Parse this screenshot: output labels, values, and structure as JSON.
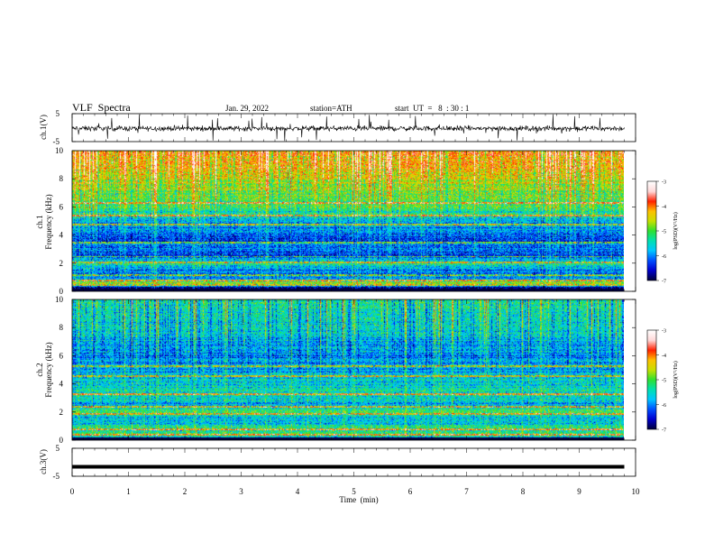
{
  "header": {
    "title": "VLF  Spectra",
    "date": "Jan. 29, 2022",
    "station": "station=ATH",
    "start_time": "start  UT  =   8  : 30 : 1"
  },
  "chart_data": [
    {
      "type": "line",
      "panel": "ch1-waveform",
      "ylabel": "ch.1(V)",
      "ylim": [
        -5,
        5
      ],
      "yticks": [
        "5",
        "-5"
      ],
      "xlim": [
        0,
        10
      ],
      "x_extent_data": [
        0,
        9.8
      ],
      "baseline": -0.3,
      "noise_amplitude": 1.0,
      "spike_range": [
        -5,
        5
      ]
    },
    {
      "type": "heatmap",
      "panel": "ch1-spectrogram",
      "ylabel": "ch.1\nFrequency (kHz)",
      "ylim": [
        0,
        10
      ],
      "yticks": [
        "0",
        "2",
        "4",
        "6",
        "8",
        "10"
      ],
      "xlim": [
        0,
        10
      ],
      "x_extent_data": [
        0,
        9.8
      ],
      "psd_profile": [
        {
          "f": 0.0,
          "v": -7.0
        },
        {
          "f": 0.3,
          "v": -6.8
        },
        {
          "f": 0.6,
          "v": -4.6
        },
        {
          "f": 1.0,
          "v": -6.0
        },
        {
          "f": 1.5,
          "v": -6.1
        },
        {
          "f": 2.0,
          "v": -5.3
        },
        {
          "f": 2.6,
          "v": -6.3
        },
        {
          "f": 3.2,
          "v": -6.0
        },
        {
          "f": 4.0,
          "v": -6.2
        },
        {
          "f": 5.0,
          "v": -5.7
        },
        {
          "f": 6.0,
          "v": -5.1
        },
        {
          "f": 7.0,
          "v": -4.8
        },
        {
          "f": 8.0,
          "v": -4.5
        },
        {
          "f": 9.0,
          "v": -4.2
        },
        {
          "f": 10.0,
          "v": -4.0
        }
      ],
      "line_frequencies_khz": [
        0.5,
        0.8,
        1.2,
        2.1,
        2.5,
        3.5,
        4.8,
        5.4,
        6.3
      ]
    },
    {
      "type": "heatmap",
      "panel": "ch2-spectrogram",
      "ylabel": "ch.2\nFrequency (kHz)",
      "ylim": [
        0,
        10
      ],
      "yticks": [
        "0",
        "2",
        "4",
        "6",
        "8",
        "10"
      ],
      "xlim": [
        0,
        10
      ],
      "x_extent_data": [
        0,
        9.8
      ],
      "psd_profile": [
        {
          "f": 0.0,
          "v": -7.0
        },
        {
          "f": 0.4,
          "v": -5.0
        },
        {
          "f": 1.0,
          "v": -5.4
        },
        {
          "f": 1.6,
          "v": -5.8
        },
        {
          "f": 2.0,
          "v": -5.0
        },
        {
          "f": 2.6,
          "v": -5.8
        },
        {
          "f": 3.2,
          "v": -5.3
        },
        {
          "f": 4.0,
          "v": -5.6
        },
        {
          "f": 5.0,
          "v": -5.8
        },
        {
          "f": 6.0,
          "v": -6.0
        },
        {
          "f": 7.0,
          "v": -5.7
        },
        {
          "f": 8.0,
          "v": -5.5
        },
        {
          "f": 9.0,
          "v": -5.4
        },
        {
          "f": 10.0,
          "v": -5.3
        }
      ],
      "line_frequencies_khz": [
        0.4,
        0.8,
        1.9,
        2.4,
        3.3,
        4.6,
        5.3
      ]
    },
    {
      "type": "line",
      "panel": "ch3-waveform",
      "ylabel": "ch.3(V)",
      "ylim": [
        -5,
        5
      ],
      "yticks": [
        "5",
        "-5"
      ],
      "xlim": [
        0,
        10
      ],
      "x_extent_data": [
        0,
        9.8
      ],
      "xlabel": "Time  (min)",
      "xticks": [
        "0",
        "1",
        "2",
        "3",
        "4",
        "5",
        "6",
        "7",
        "8",
        "9",
        "10"
      ],
      "baseline": -1.6
    }
  ],
  "colorbars": [
    {
      "label": "log(PSD)(V²/Hz)",
      "range": [
        -7,
        -3
      ],
      "ticks": [
        "-3",
        "-4",
        "-5",
        "-6",
        "-7"
      ]
    },
    {
      "label": "log(PSD)(V²/Hz)",
      "range": [
        -7,
        -3
      ],
      "ticks": [
        "-3",
        "-4",
        "-5",
        "-6",
        "-7"
      ]
    }
  ],
  "colors": {
    "colormap": [
      "#000040",
      "#0000d0",
      "#0050ff",
      "#00c8ff",
      "#00e0b0",
      "#30e030",
      "#c8e000",
      "#ffc000",
      "#ff2000",
      "#ffd8d8",
      "#ffffff"
    ]
  }
}
